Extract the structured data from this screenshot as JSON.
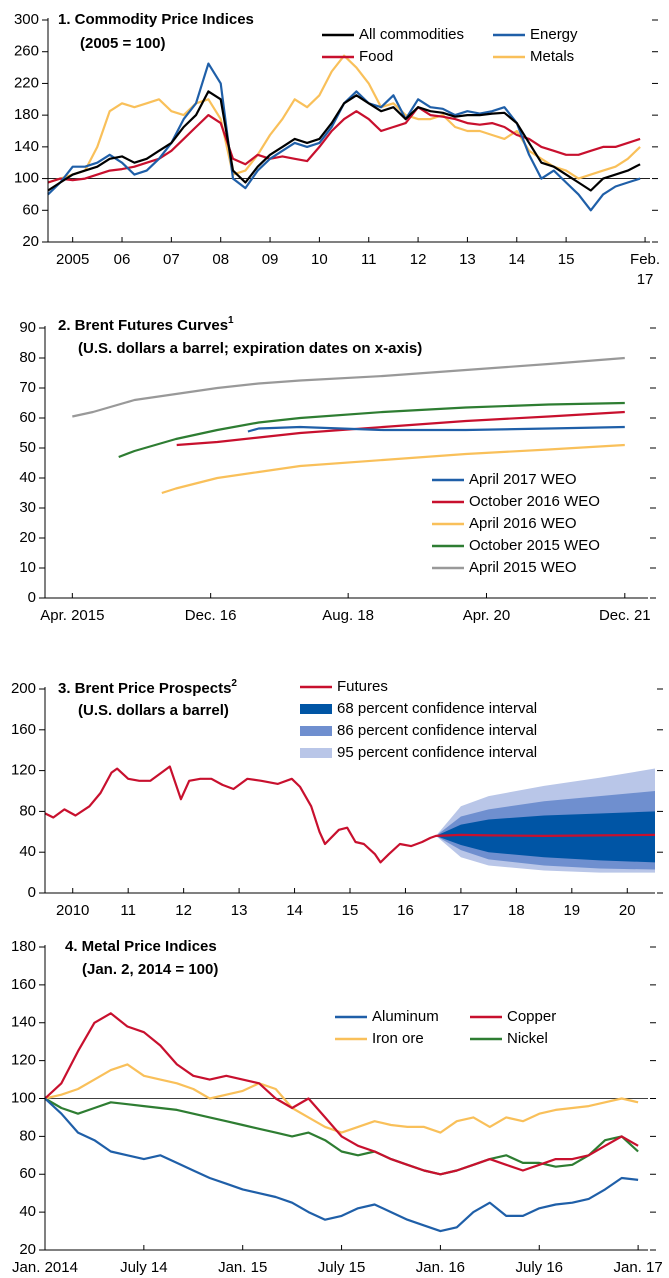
{
  "chart_data": [
    {
      "type": "line",
      "title": "1. Commodity Price Indices",
      "subtitle": "(2005 = 100)",
      "xlim": [
        2005,
        2017.2
      ],
      "ylim": [
        20,
        300
      ],
      "yticks": [
        20,
        60,
        100,
        140,
        180,
        220,
        260,
        300
      ],
      "reference_line": 100,
      "xticks": [
        {
          "value": 2005.5,
          "label": "2005"
        },
        {
          "value": 2006.5,
          "label": "06"
        },
        {
          "value": 2007.5,
          "label": "07"
        },
        {
          "value": 2008.5,
          "label": "08"
        },
        {
          "value": 2009.5,
          "label": "09"
        },
        {
          "value": 2010.5,
          "label": "10"
        },
        {
          "value": 2011.5,
          "label": "11"
        },
        {
          "value": 2012.5,
          "label": "12"
        },
        {
          "value": 2013.5,
          "label": "13"
        },
        {
          "value": 2014.5,
          "label": "14"
        },
        {
          "value": 2015.5,
          "label": "15"
        },
        {
          "value": 2017.1,
          "label": "Feb. 17"
        }
      ],
      "x": [
        2005,
        2005.25,
        2005.5,
        2005.75,
        2006,
        2006.25,
        2006.5,
        2006.75,
        2007,
        2007.25,
        2007.5,
        2007.75,
        2008,
        2008.25,
        2008.5,
        2008.75,
        2009,
        2009.25,
        2009.5,
        2009.75,
        2010,
        2010.25,
        2010.5,
        2010.75,
        2011,
        2011.25,
        2011.5,
        2011.75,
        2012,
        2012.25,
        2012.5,
        2012.75,
        2013,
        2013.25,
        2013.5,
        2013.75,
        2014,
        2014.25,
        2014.5,
        2014.75,
        2015,
        2015.25,
        2015.5,
        2015.75,
        2016,
        2016.25,
        2016.5,
        2016.75,
        2017
      ],
      "series": [
        {
          "name": "All commodities",
          "color": "#000000",
          "values": [
            85,
            95,
            105,
            110,
            115,
            125,
            128,
            120,
            125,
            135,
            145,
            165,
            180,
            210,
            200,
            110,
            95,
            115,
            130,
            140,
            150,
            145,
            150,
            170,
            195,
            205,
            195,
            185,
            190,
            175,
            190,
            185,
            183,
            178,
            180,
            180,
            182,
            183,
            170,
            145,
            120,
            115,
            105,
            95,
            85,
            100,
            105,
            110,
            118
          ]
        },
        {
          "name": "Energy",
          "color": "#1f5fa8",
          "values": [
            80,
            95,
            115,
            115,
            120,
            130,
            120,
            105,
            110,
            125,
            145,
            175,
            195,
            245,
            220,
            100,
            88,
            110,
            125,
            135,
            145,
            140,
            145,
            165,
            195,
            210,
            195,
            190,
            205,
            175,
            200,
            190,
            188,
            180,
            185,
            182,
            185,
            190,
            170,
            130,
            100,
            110,
            95,
            80,
            60,
            80,
            90,
            95,
            100
          ]
        },
        {
          "name": "Food",
          "color": "#c8102e",
          "values": [
            95,
            100,
            98,
            100,
            105,
            110,
            112,
            115,
            120,
            125,
            135,
            150,
            165,
            180,
            170,
            125,
            118,
            130,
            125,
            128,
            125,
            122,
            140,
            160,
            175,
            185,
            175,
            160,
            165,
            170,
            190,
            180,
            178,
            175,
            170,
            168,
            170,
            165,
            155,
            150,
            140,
            135,
            130,
            130,
            135,
            140,
            140,
            145,
            150
          ]
        },
        {
          "name": "Metals",
          "color": "#f9c05a",
          "values": [
            95,
            100,
            105,
            110,
            140,
            185,
            195,
            190,
            195,
            200,
            185,
            180,
            195,
            200,
            175,
            105,
            110,
            130,
            155,
            175,
            200,
            190,
            205,
            235,
            255,
            240,
            220,
            190,
            195,
            180,
            175,
            175,
            180,
            165,
            160,
            160,
            155,
            150,
            160,
            135,
            125,
            115,
            110,
            100,
            105,
            110,
            115,
            125,
            140
          ]
        }
      ]
    },
    {
      "type": "line",
      "title": "2. Brent Futures Curves",
      "title_superscript": "1",
      "subtitle": "(U.S. dollars a barrel; expiration dates on x-axis)",
      "xlim": [
        2014.92,
        2022.2
      ],
      "ylim": [
        0,
        90
      ],
      "yticks": [
        0,
        10,
        20,
        30,
        40,
        50,
        60,
        70,
        80,
        90
      ],
      "xticks": [
        {
          "value": 2015.25,
          "label": "Apr. 2015"
        },
        {
          "value": 2016.92,
          "label": "Dec. 16"
        },
        {
          "value": 2018.58,
          "label": "Aug. 18"
        },
        {
          "value": 2020.25,
          "label": "Apr. 20"
        },
        {
          "value": 2021.92,
          "label": "Dec. 21"
        }
      ],
      "series": [
        {
          "name": "April 2017 WEO",
          "color": "#1f5fa8",
          "x": [
            2017.37,
            2017.5,
            2018,
            2019,
            2020,
            2021,
            2021.92
          ],
          "values": [
            55.5,
            56.5,
            57,
            56,
            56,
            56.5,
            57
          ]
        },
        {
          "name": "October 2016 WEO",
          "color": "#c8102e",
          "x": [
            2016.51,
            2017,
            2017.5,
            2018,
            2019,
            2020,
            2021,
            2021.92
          ],
          "values": [
            51,
            52,
            53.5,
            55,
            57,
            59,
            60.5,
            62
          ]
        },
        {
          "name": "April 2016 WEO",
          "color": "#f9c05a",
          "x": [
            2016.33,
            2016.5,
            2017,
            2017.5,
            2018,
            2019,
            2020,
            2021,
            2021.92
          ],
          "values": [
            35,
            36.5,
            40,
            42,
            44,
            46,
            48,
            49.5,
            51
          ]
        },
        {
          "name": "October 2015 WEO",
          "color": "#2e7d32",
          "x": [
            2015.81,
            2016,
            2016.5,
            2017,
            2017.5,
            2018,
            2019,
            2020,
            2021,
            2021.92
          ],
          "values": [
            47,
            49,
            53,
            56,
            58.5,
            60,
            62,
            63.5,
            64.5,
            65
          ]
        },
        {
          "name": "April 2015 WEO",
          "color": "#999999",
          "x": [
            2015.25,
            2015.5,
            2016,
            2016.5,
            2017,
            2017.5,
            2018,
            2019,
            2020,
            2021,
            2021.92
          ],
          "values": [
            60.5,
            62,
            66,
            68,
            70,
            71.5,
            72.5,
            74,
            76,
            78,
            80
          ]
        }
      ]
    },
    {
      "type": "fan",
      "title": "3. Brent Price Prospects",
      "title_superscript": "2",
      "subtitle": "(U.S. dollars a barrel)",
      "xlim": [
        2010,
        2021
      ],
      "ylim": [
        0,
        200
      ],
      "yticks": [
        0,
        40,
        80,
        120,
        160,
        200
      ],
      "xticks": [
        {
          "value": 2010.5,
          "label": "2010"
        },
        {
          "value": 2011.5,
          "label": "11"
        },
        {
          "value": 2012.5,
          "label": "12"
        },
        {
          "value": 2013.5,
          "label": "13"
        },
        {
          "value": 2014.5,
          "label": "14"
        },
        {
          "value": 2015.5,
          "label": "15"
        },
        {
          "value": 2016.5,
          "label": "16"
        },
        {
          "value": 2017.5,
          "label": "17"
        },
        {
          "value": 2018.5,
          "label": "18"
        },
        {
          "value": 2019.5,
          "label": "19"
        },
        {
          "value": 2020.5,
          "label": "20"
        }
      ],
      "series": [
        {
          "name": "Futures",
          "color": "#c8102e",
          "x": [
            2010.0,
            2010.15,
            2010.35,
            2010.55,
            2010.8,
            2011.0,
            2011.2,
            2011.3,
            2011.5,
            2011.7,
            2011.9,
            2012.1,
            2012.25,
            2012.45,
            2012.6,
            2012.8,
            2013.0,
            2013.2,
            2013.4,
            2013.65,
            2013.9,
            2014.2,
            2014.45,
            2014.6,
            2014.8,
            2014.95,
            2015.05,
            2015.3,
            2015.45,
            2015.6,
            2015.75,
            2015.95,
            2016.05,
            2016.2,
            2016.4,
            2016.6,
            2016.8,
            2016.95,
            2017.05,
            2017.5,
            2018,
            2019,
            2020,
            2021
          ],
          "values": [
            78,
            74,
            82,
            76,
            85,
            98,
            118,
            122,
            112,
            110,
            110,
            118,
            124,
            92,
            110,
            112,
            112,
            106,
            102,
            112,
            110,
            107,
            112,
            104,
            85,
            60,
            48,
            62,
            64,
            50,
            48,
            38,
            30,
            38,
            48,
            46,
            50,
            54,
            56,
            57,
            56.5,
            56,
            56.5,
            57
          ]
        }
      ],
      "intervals": [
        {
          "name": "68 percent confidence interval",
          "color": "#0055a5",
          "x": [
            2017.05,
            2017.5,
            2018,
            2019,
            2020,
            2021
          ],
          "lower": [
            56,
            47,
            40,
            35,
            32,
            30
          ],
          "upper": [
            56,
            67,
            72,
            76,
            78,
            80
          ]
        },
        {
          "name": "86 percent confidence interval",
          "color": "#6f8fcf",
          "x": [
            2017.05,
            2017.5,
            2018,
            2019,
            2020,
            2021
          ],
          "lower": [
            56,
            42,
            33,
            27,
            24,
            23
          ],
          "upper": [
            56,
            75,
            82,
            90,
            95,
            100
          ]
        },
        {
          "name": "95 percent confidence interval",
          "color": "#b9c6e8",
          "x": [
            2017.05,
            2017.5,
            2018,
            2019,
            2020,
            2021
          ],
          "lower": [
            56,
            35,
            27,
            22,
            20,
            20
          ],
          "upper": [
            56,
            85,
            95,
            105,
            113,
            122
          ]
        }
      ]
    },
    {
      "type": "line",
      "title": "4. Metal Price Indices",
      "subtitle": "(Jan. 2, 2014 = 100)",
      "xlim": [
        2014,
        2017.05
      ],
      "ylim": [
        20,
        180
      ],
      "yticks": [
        20,
        40,
        60,
        80,
        100,
        120,
        140,
        160,
        180
      ],
      "reference_line": 100,
      "xticks": [
        {
          "value": 2014,
          "label": "Jan. 2014"
        },
        {
          "value": 2014.5,
          "label": "July 14"
        },
        {
          "value": 2015,
          "label": "Jan. 15"
        },
        {
          "value": 2015.5,
          "label": "July 15"
        },
        {
          "value": 2016,
          "label": "Jan. 16"
        },
        {
          "value": 2016.5,
          "label": "July 16"
        },
        {
          "value": 2017,
          "label": "Jan. 17"
        }
      ],
      "x": [
        2014,
        2014.083,
        2014.167,
        2014.25,
        2014.333,
        2014.417,
        2014.5,
        2014.583,
        2014.667,
        2014.75,
        2014.833,
        2014.917,
        2015,
        2015.083,
        2015.167,
        2015.25,
        2015.333,
        2015.417,
        2015.5,
        2015.583,
        2015.667,
        2015.75,
        2015.833,
        2015.917,
        2016,
        2016.083,
        2016.167,
        2016.25,
        2016.333,
        2016.417,
        2016.5,
        2016.583,
        2016.667,
        2016.75,
        2016.833,
        2016.917,
        2017
      ],
      "series": [
        {
          "name": "Aluminum",
          "color": "#1f5fa8",
          "values": [
            100,
            92,
            82,
            78,
            72,
            70,
            68,
            70,
            66,
            62,
            58,
            55,
            52,
            50,
            48,
            45,
            40,
            36,
            38,
            42,
            44,
            40,
            36,
            33,
            30,
            32,
            40,
            45,
            38,
            38,
            42,
            44,
            45,
            47,
            52,
            58,
            57
          ]
        },
        {
          "name": "Copper",
          "color": "#c8102e",
          "values": [
            100,
            108,
            125,
            140,
            145,
            138,
            135,
            128,
            118,
            112,
            110,
            112,
            110,
            108,
            100,
            95,
            100,
            90,
            80,
            75,
            72,
            68,
            65,
            62,
            60,
            62,
            65,
            68,
            65,
            62,
            65,
            68,
            68,
            70,
            75,
            80,
            75
          ]
        },
        {
          "name": "Iron ore",
          "color": "#f9c05a",
          "values": [
            100,
            102,
            105,
            110,
            115,
            118,
            112,
            110,
            108,
            105,
            100,
            102,
            104,
            108,
            105,
            95,
            90,
            85,
            82,
            85,
            88,
            86,
            85,
            85,
            82,
            88,
            90,
            85,
            90,
            88,
            92,
            94,
            95,
            96,
            98,
            100,
            98
          ]
        },
        {
          "name": "Nickel",
          "color": "#2e7d32",
          "values": [
            100,
            95,
            92,
            95,
            98,
            97,
            96,
            95,
            94,
            92,
            90,
            88,
            86,
            84,
            82,
            80,
            82,
            78,
            72,
            70,
            72,
            68,
            65,
            62,
            60,
            62,
            65,
            68,
            70,
            66,
            66,
            64,
            65,
            70,
            78,
            80,
            72
          ]
        }
      ]
    }
  ]
}
